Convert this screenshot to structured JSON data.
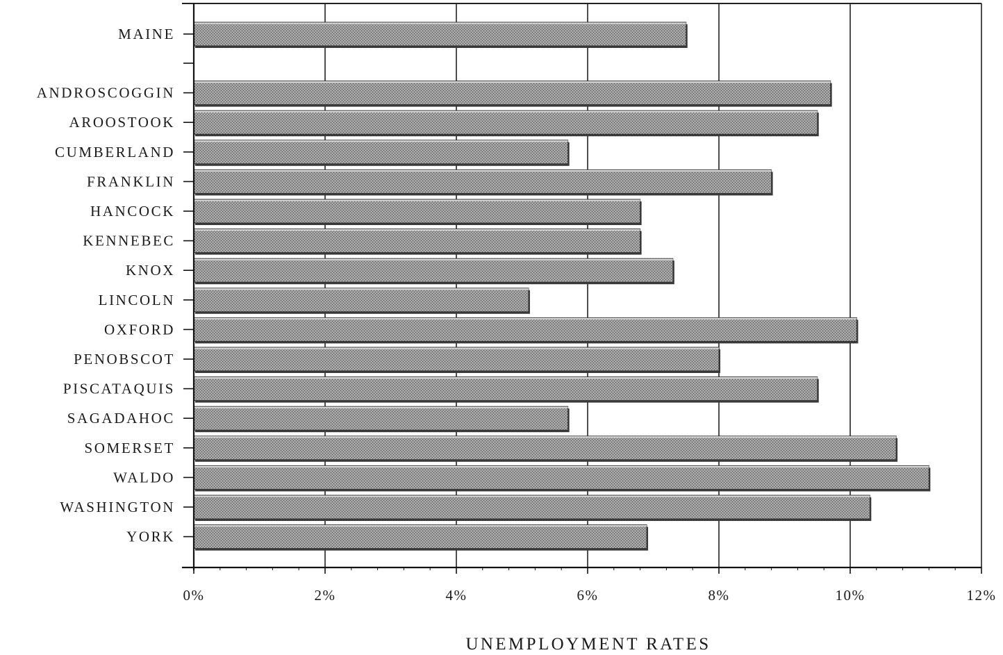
{
  "chart_data": {
    "type": "bar",
    "orientation": "horizontal",
    "categories": [
      "MAINE",
      "ANDROSCOGGIN",
      "AROOSTOOK",
      "CUMBERLAND",
      "FRANKLIN",
      "HANCOCK",
      "KENNEBEC",
      "KNOX",
      "LINCOLN",
      "OXFORD",
      "PENOBSCOT",
      "PISCATAQUIS",
      "SAGADAHOC",
      "SOMERSET",
      "WALDO",
      "WASHINGTON",
      "YORK"
    ],
    "values": [
      7.5,
      9.7,
      9.5,
      5.7,
      8.8,
      6.8,
      6.8,
      7.3,
      5.1,
      10.1,
      8.0,
      9.5,
      5.7,
      10.7,
      11.2,
      10.3,
      6.9
    ],
    "title": "",
    "xlabel": "UNEMPLOYMENT RATES",
    "ylabel": "",
    "xlim": [
      0,
      12
    ],
    "xticks": [
      0,
      2,
      4,
      6,
      8,
      10,
      12
    ],
    "xtick_labels": [
      "0%",
      "2%",
      "4%",
      "6%",
      "8%",
      "10%",
      "12%"
    ],
    "grid": "vertical",
    "legend": "none",
    "bar_color": "#8f8f8f",
    "gridline_color": "#222222"
  }
}
